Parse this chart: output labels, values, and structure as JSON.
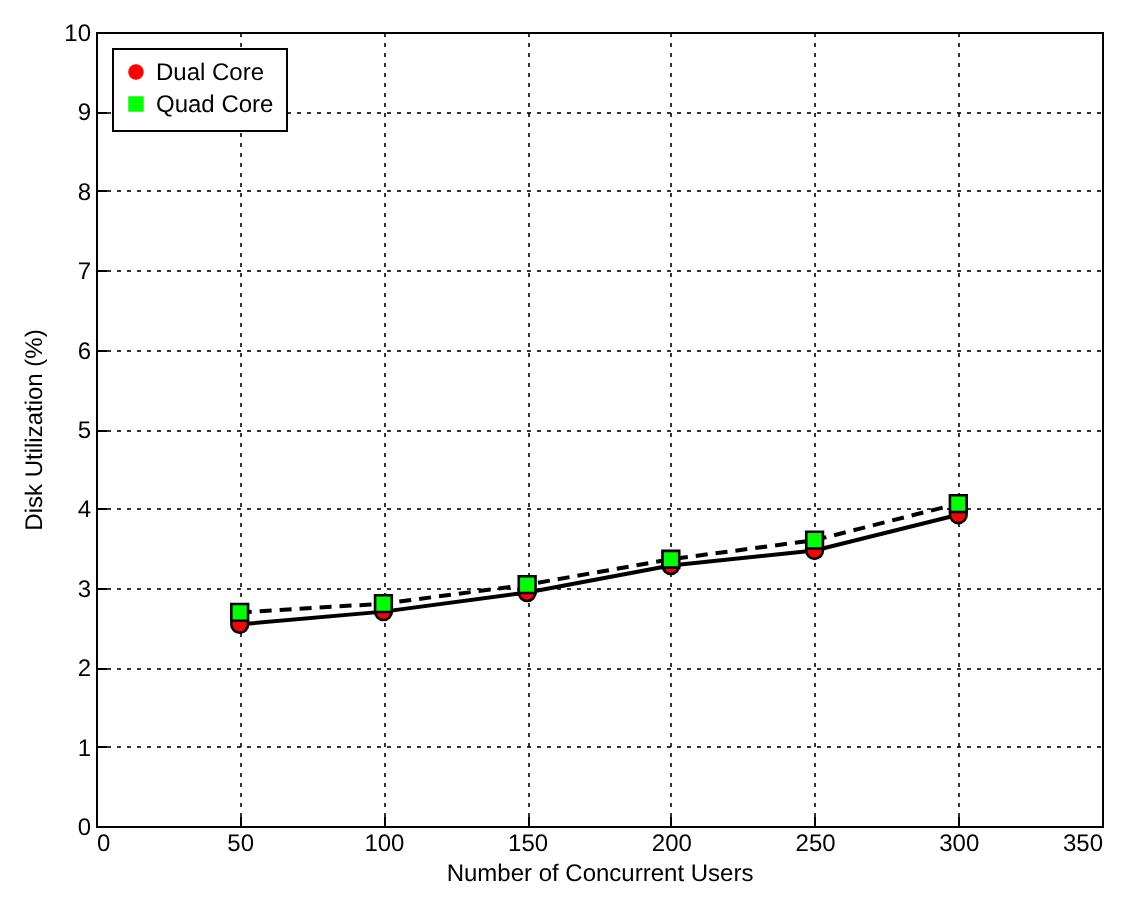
{
  "chart_data": {
    "type": "line",
    "xlabel": "Number of Concurrent Users",
    "ylabel": "Disk Utilization (%)",
    "x": [
      50,
      100,
      150,
      200,
      250,
      300
    ],
    "series": [
      {
        "name": "Dual Core",
        "color": "#ff0000",
        "marker": "circle",
        "line_style": "solid",
        "values": [
          2.54,
          2.7,
          2.94,
          3.28,
          3.47,
          3.92
        ]
      },
      {
        "name": "Quad Core",
        "color": "#00ff00",
        "marker": "square",
        "line_style": "dashed",
        "values": [
          2.69,
          2.8,
          3.04,
          3.36,
          3.6,
          4.06
        ]
      }
    ],
    "xlim": [
      0,
      350
    ],
    "xticks": [
      0,
      50,
      100,
      150,
      200,
      250,
      300,
      350
    ],
    "ylim": [
      0,
      10
    ],
    "yticks": [
      0,
      1,
      2,
      3,
      4,
      5,
      6,
      7,
      8,
      9,
      10
    ],
    "grid": true,
    "legend": "top left"
  }
}
